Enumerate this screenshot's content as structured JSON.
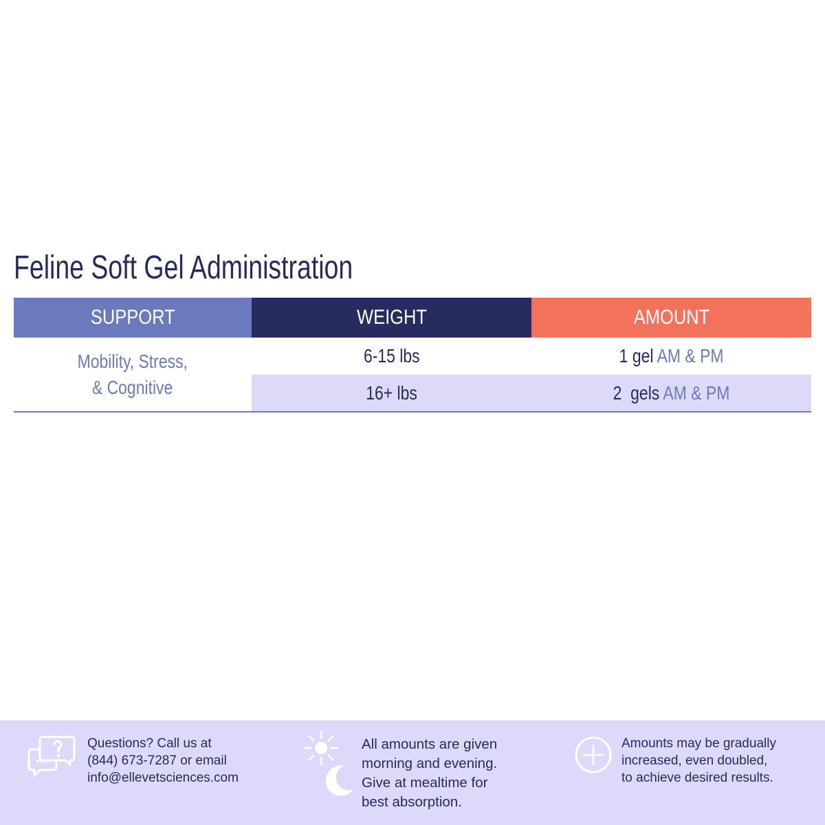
{
  "title": "Feline Soft Gel Administration",
  "table": {
    "headers": {
      "support": "SUPPORT",
      "weight": "WEIGHT",
      "amount": "AMOUNT"
    },
    "support_lines": [
      "Mobility, Stress,",
      "& Cognitive"
    ],
    "rows": [
      {
        "weight": "6-15 lbs",
        "amount": "1 gel",
        "timing": "AM & PM"
      },
      {
        "weight": "16+ lbs",
        "amount": "2  gels",
        "timing": "AM & PM"
      }
    ]
  },
  "footer": {
    "contact": {
      "icon": "chat-bubbles-icon",
      "text": "Questions? Call us at\n(844) 673-7287 or email\ninfo@ellevetsciences.com"
    },
    "schedule": {
      "icon": "sun-moon-icon",
      "text": "All amounts are given\nmorning and evening.\nGive at mealtime for\nbest absorption."
    },
    "increase": {
      "icon": "plus-circle-icon",
      "text": "Amounts may be gradually\nincreased, even doubled,\nto achieve desired results."
    }
  },
  "colors": {
    "navy": "#282b60",
    "periwinkle": "#6b79bd",
    "coral": "#f2725c",
    "lavender": "#dcd9fa"
  }
}
